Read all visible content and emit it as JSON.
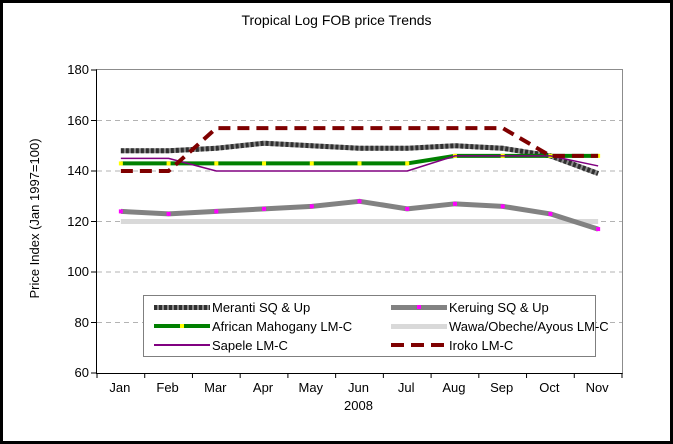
{
  "title": "Tropical Log FOB price Trends",
  "chart_data": {
    "type": "line",
    "title": "Tropical Log FOB price Trends",
    "xlabel": "2008",
    "ylabel": "Price Index (Jan 1997=100)",
    "ylim": [
      60,
      180
    ],
    "ytick_step": 20,
    "y_tick_labels": [
      "180",
      "160",
      "140",
      "120",
      "100",
      "80",
      "60"
    ],
    "grid": "horizontal dashed gridlines at 80,100,120,140,160",
    "legend_position": "bottom-inside-box",
    "categories": [
      "Jan",
      "Feb",
      "Mar",
      "Apr",
      "May",
      "Jun",
      "Jul",
      "Aug",
      "Sep",
      "Oct",
      "Nov"
    ],
    "series": [
      {
        "name": "Meranti SQ & Up",
        "color": "#303030",
        "color2": "#8a8a8a",
        "marker": null,
        "swatch": "dense-dash",
        "values": [
          148,
          148,
          149,
          151,
          150,
          149,
          149,
          150,
          149,
          146,
          139
        ]
      },
      {
        "name": "Keruing SQ & Up",
        "color": "#828282",
        "marker": "#ff00ff",
        "swatch": "gray-marker",
        "values": [
          124,
          123,
          124,
          125,
          126,
          128,
          125,
          127,
          126,
          123,
          117
        ]
      },
      {
        "name": "African Mahogany LM-C",
        "color": "#008000",
        "marker": "#ffff00",
        "swatch": "green-marker",
        "values": [
          143,
          143,
          143,
          143,
          143,
          143,
          143,
          146,
          146,
          146,
          146
        ]
      },
      {
        "name": "Wawa/Obeche/Ayous LM-C",
        "color": "#d9d9d9",
        "marker": null,
        "swatch": "light-plain",
        "values": [
          120,
          120,
          120,
          120,
          120,
          120,
          120,
          120,
          120,
          120,
          120
        ]
      },
      {
        "name": "Sapele LM-C",
        "color": "#800080",
        "marker": null,
        "swatch": "thin-purple",
        "values": [
          145,
          145,
          140,
          140,
          140,
          140,
          140,
          146,
          146,
          146,
          142
        ]
      },
      {
        "name": "Iroko LM-C",
        "color": "#7f0000",
        "marker": null,
        "swatch": "big-dash",
        "values": [
          140,
          140,
          157,
          157,
          157,
          157,
          157,
          157,
          157,
          146,
          146
        ]
      }
    ],
    "legend_grid_order": [
      "Meranti SQ & Up",
      "Keruing SQ & Up",
      "African Mahogany LM-C",
      "Wawa/Obeche/Ayous LM-C",
      "Sapele LM-C",
      "Iroko LM-C"
    ],
    "colors": {
      "gridline": "#b3b3b3",
      "plot_border": "#8c8c8c",
      "axis": "#000000",
      "frame_border": "#000000"
    }
  }
}
